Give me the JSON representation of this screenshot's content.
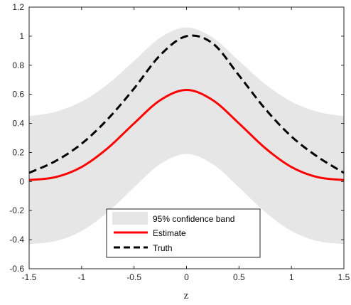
{
  "chart_data": {
    "type": "line",
    "xlabel": "z",
    "ylabel": "",
    "xlim": [
      -1.5,
      1.5
    ],
    "ylim": [
      -0.6,
      1.2
    ],
    "xticks": [
      -1.5,
      -1,
      -0.5,
      0,
      0.5,
      1,
      1.5
    ],
    "xtick_labels": [
      "-1.5",
      "-1",
      "-0.5",
      "0",
      "0.5",
      "1",
      "1.5"
    ],
    "yticks": [
      -0.6,
      -0.4,
      -0.2,
      0,
      0.2,
      0.4,
      0.6,
      0.8,
      1,
      1.2
    ],
    "ytick_labels": [
      "-0.6",
      "-0.4",
      "-0.2",
      "0",
      "0.2",
      "0.4",
      "0.6",
      "0.8",
      "1",
      "1.2"
    ],
    "grid": false,
    "legend_placement": "bottom-center",
    "x": [
      -1.5,
      -1.25,
      -1.0,
      -0.75,
      -0.5,
      -0.25,
      0.0,
      0.25,
      0.5,
      0.75,
      1.0,
      1.25,
      1.5
    ],
    "series": [
      {
        "name": "95% confidence band",
        "kind": "band",
        "color": "#e6e6e6",
        "upper": [
          0.45,
          0.48,
          0.55,
          0.67,
          0.83,
          0.99,
          1.06,
          0.99,
          0.83,
          0.67,
          0.55,
          0.48,
          0.45
        ],
        "lower": [
          -0.43,
          -0.41,
          -0.34,
          -0.21,
          -0.04,
          0.12,
          0.19,
          0.12,
          -0.04,
          -0.21,
          -0.34,
          -0.41,
          -0.43
        ]
      },
      {
        "name": "Estimate",
        "kind": "line",
        "color": "#ff0000",
        "style": "solid",
        "values": [
          0.01,
          0.03,
          0.1,
          0.23,
          0.4,
          0.56,
          0.63,
          0.56,
          0.4,
          0.23,
          0.1,
          0.03,
          0.01
        ]
      },
      {
        "name": "Truth",
        "kind": "line",
        "color": "#000000",
        "style": "dashed",
        "values": [
          0.06,
          0.14,
          0.26,
          0.43,
          0.64,
          0.87,
          1.0,
          0.95,
          0.73,
          0.5,
          0.31,
          0.17,
          0.06
        ]
      }
    ]
  }
}
